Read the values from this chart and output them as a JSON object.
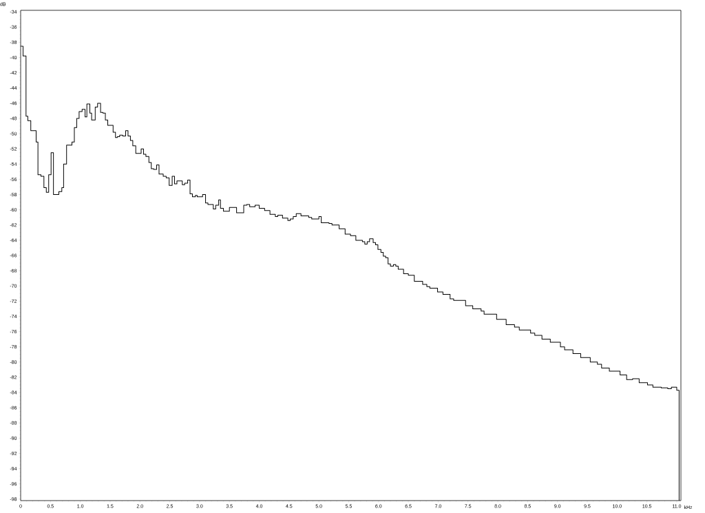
{
  "chart_data": {
    "type": "step",
    "xlabel": "kHz",
    "ylabel": "dB",
    "color": "#000000",
    "x": [
      0,
      0.04,
      0.09,
      0.12,
      0.17,
      0.26,
      0.29,
      0.34,
      0.39,
      0.43,
      0.47,
      0.51,
      0.55,
      0.6,
      0.64,
      0.69,
      0.72,
      0.77,
      0.82,
      0.86,
      0.9,
      0.94,
      0.98,
      1.03,
      1.08,
      1.11,
      1.16,
      1.19,
      1.25,
      1.29,
      1.34,
      1.38,
      1.42,
      1.46,
      1.51,
      1.55,
      1.59,
      1.62,
      1.66,
      1.71,
      1.76,
      1.8,
      1.84,
      1.88,
      1.93,
      2.02,
      2.06,
      2.1,
      2.15,
      2.19,
      2.23,
      2.28,
      2.32,
      2.39,
      2.44,
      2.49,
      2.54,
      2.58,
      2.62,
      2.71,
      2.75,
      2.8,
      2.84,
      2.88,
      2.93,
      2.96,
      3.05,
      3.1,
      3.14,
      3.23,
      3.27,
      3.32,
      3.35,
      3.4,
      3.5,
      3.62,
      3.74,
      3.79,
      3.84,
      3.93,
      4.0,
      4.09,
      4.18,
      4.27,
      4.31,
      4.39,
      4.48,
      4.52,
      4.57,
      4.62,
      4.7,
      4.83,
      4.88,
      5.0,
      5.04,
      5.17,
      5.22,
      5.34,
      5.44,
      5.53,
      5.62,
      5.73,
      5.77,
      5.81,
      5.85,
      5.91,
      5.95,
      5.99,
      6.04,
      6.08,
      6.12,
      6.16,
      6.2,
      6.25,
      6.29,
      6.33,
      6.42,
      6.5,
      6.6,
      6.74,
      6.81,
      6.86,
      6.99,
      7.08,
      7.2,
      7.26,
      7.46,
      7.58,
      7.72,
      7.77,
      7.98,
      8.14,
      8.28,
      8.36,
      8.55,
      8.62,
      8.74,
      8.88,
      9.05,
      9.12,
      9.26,
      9.39,
      9.55,
      9.67,
      9.74,
      9.87,
      10.05,
      10.16,
      10.26,
      10.37,
      10.51,
      10.6,
      10.74,
      10.85,
      10.91,
      10.96,
      11.0,
      11.04
    ],
    "values": [
      -38.5,
      -39.8,
      -47.7,
      -48.3,
      -49.6,
      -51.1,
      -55.4,
      -55.6,
      -57.1,
      -57.7,
      -55.4,
      -52.5,
      -58.0,
      -58.0,
      -57.6,
      -57.1,
      -54.0,
      -51.5,
      -51.5,
      -51.1,
      -49.2,
      -48.0,
      -47.1,
      -46.8,
      -47.8,
      -46.1,
      -47.3,
      -48.2,
      -46.5,
      -46.0,
      -47.2,
      -47.3,
      -48.2,
      -48.9,
      -48.9,
      -49.8,
      -50.5,
      -50.4,
      -50.2,
      -50.3,
      -49.6,
      -50.3,
      -50.9,
      -51.6,
      -52.6,
      -52.0,
      -52.7,
      -53.0,
      -53.8,
      -54.6,
      -54.7,
      -54.1,
      -55.3,
      -55.6,
      -55.8,
      -56.8,
      -55.6,
      -56.6,
      -56.2,
      -56.7,
      -56.5,
      -56.1,
      -57.9,
      -58.3,
      -58.1,
      -58.3,
      -58.0,
      -59.1,
      -59.3,
      -59.9,
      -59.4,
      -58.7,
      -59.8,
      -60.2,
      -59.7,
      -60.4,
      -59.4,
      -59.3,
      -59.6,
      -59.4,
      -59.8,
      -60.1,
      -60.6,
      -60.9,
      -60.7,
      -61.1,
      -61.4,
      -61.2,
      -60.9,
      -60.5,
      -60.8,
      -61.0,
      -61.2,
      -60.9,
      -61.7,
      -61.8,
      -62.0,
      -62.5,
      -63.2,
      -63.4,
      -64.0,
      -64.2,
      -64.5,
      -64.2,
      -63.8,
      -64.3,
      -64.6,
      -65.2,
      -65.6,
      -66.1,
      -66.3,
      -67.1,
      -67.4,
      -67.2,
      -67.4,
      -67.8,
      -68.4,
      -68.6,
      -69.4,
      -69.8,
      -70.1,
      -70.3,
      -70.8,
      -71.1,
      -71.7,
      -71.9,
      -72.6,
      -73.0,
      -73.3,
      -73.7,
      -74.4,
      -75.1,
      -75.4,
      -75.8,
      -76.2,
      -76.5,
      -77.0,
      -77.4,
      -78.0,
      -78.4,
      -78.9,
      -79.4,
      -80.0,
      -80.3,
      -80.8,
      -81.2,
      -81.7,
      -82.3,
      -82.2,
      -82.7,
      -83.0,
      -83.3,
      -83.4,
      -83.5,
      -83.3,
      -83.3,
      -83.7,
      -98.2
    ],
    "xlim": [
      0,
      11.07
    ],
    "ylim": [
      -98.2,
      -33.8
    ],
    "xticks": [
      0,
      0.5,
      {
        "value": 1,
        "label": "1.0"
      },
      1.5,
      {
        "value": 2,
        "label": "2.0"
      },
      2.5,
      {
        "value": 3,
        "label": "3.0"
      },
      3.5,
      {
        "value": 4,
        "label": "4.0"
      },
      4.5,
      {
        "value": 5,
        "label": "5.0"
      },
      5.5,
      {
        "value": 6,
        "label": "6.0"
      },
      6.5,
      {
        "value": 7,
        "label": "7.0"
      },
      7.5,
      {
        "value": 8,
        "label": "8.0"
      },
      8.5,
      {
        "value": 9,
        "label": "9.0"
      },
      9.5,
      {
        "value": 10,
        "label": "10.0"
      },
      10.5,
      {
        "value": 11,
        "label": "11.0"
      }
    ],
    "yticks": [
      -34,
      -36,
      -38,
      -40,
      -42,
      -44,
      -46,
      -48,
      -50,
      -52,
      -54,
      -56,
      -58,
      -60,
      -62,
      -64,
      -66,
      -68,
      -70,
      -72,
      -74,
      -76,
      -78,
      -80,
      -82,
      -84,
      -86,
      -88,
      -90,
      -92,
      -94,
      -96,
      -98
    ]
  }
}
